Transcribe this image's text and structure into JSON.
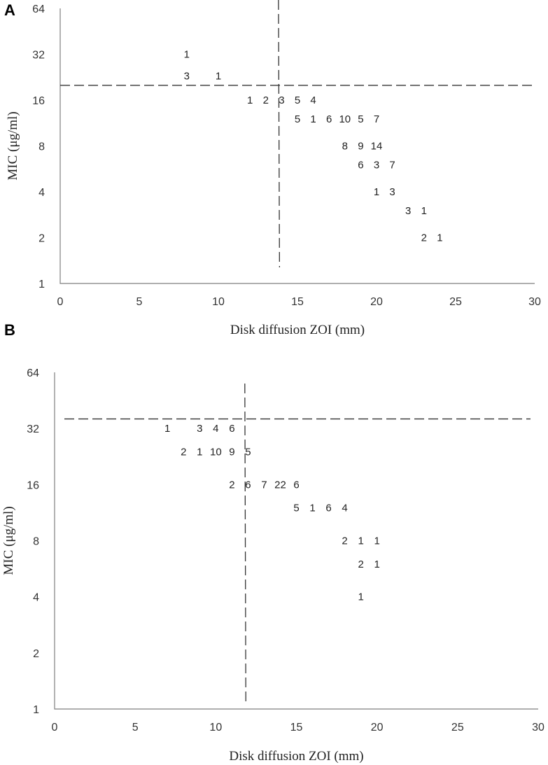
{
  "chart_data": [
    {
      "type": "scatter",
      "panel": "A",
      "xlabel": "Disk diffusion ZOI (mm)",
      "ylabel": "MIC (μg/ml)",
      "xlim": [
        0,
        30
      ],
      "xticks": [
        "0",
        "5",
        "10",
        "15",
        "20",
        "25",
        "30"
      ],
      "y_scale": "log2",
      "ylim": [
        1,
        64
      ],
      "yticks": [
        "1",
        "2",
        "4",
        "8",
        "16",
        "32",
        "64"
      ],
      "grid": false,
      "breakpoints": {
        "zoi_mm": 13.8,
        "mic_ug_ml": 20
      },
      "points": [
        {
          "x": 8,
          "y": 32,
          "label": "1"
        },
        {
          "x": 8,
          "y": 23,
          "label": "3"
        },
        {
          "x": 10,
          "y": 23,
          "label": "1"
        },
        {
          "x": 12,
          "y": 16,
          "label": "1"
        },
        {
          "x": 13,
          "y": 16,
          "label": "2"
        },
        {
          "x": 14,
          "y": 16,
          "label": "3"
        },
        {
          "x": 15,
          "y": 16,
          "label": "5"
        },
        {
          "x": 16,
          "y": 16,
          "label": "4"
        },
        {
          "x": 15,
          "y": 12,
          "label": "5"
        },
        {
          "x": 16,
          "y": 12,
          "label": "1"
        },
        {
          "x": 17,
          "y": 12,
          "label": "6"
        },
        {
          "x": 18,
          "y": 12,
          "label": "10"
        },
        {
          "x": 19,
          "y": 12,
          "label": "5"
        },
        {
          "x": 20,
          "y": 12,
          "label": "7"
        },
        {
          "x": 18,
          "y": 8,
          "label": "8"
        },
        {
          "x": 19,
          "y": 8,
          "label": "9"
        },
        {
          "x": 20,
          "y": 8,
          "label": "14"
        },
        {
          "x": 19,
          "y": 6,
          "label": "6"
        },
        {
          "x": 20,
          "y": 6,
          "label": "3"
        },
        {
          "x": 21,
          "y": 6,
          "label": "7"
        },
        {
          "x": 20,
          "y": 4,
          "label": "1"
        },
        {
          "x": 21,
          "y": 4,
          "label": "3"
        },
        {
          "x": 22,
          "y": 3,
          "label": "3"
        },
        {
          "x": 23,
          "y": 3,
          "label": "1"
        },
        {
          "x": 23,
          "y": 2,
          "label": "2"
        },
        {
          "x": 24,
          "y": 2,
          "label": "1"
        }
      ]
    },
    {
      "type": "scatter",
      "panel": "B",
      "xlabel": "Disk diffusion ZOI (mm)",
      "ylabel": "MIC (μg/ml)",
      "xlim": [
        0,
        30
      ],
      "xticks": [
        "0",
        "5",
        "10",
        "15",
        "20",
        "25",
        "30"
      ],
      "y_scale": "log2",
      "ylim": [
        1,
        64
      ],
      "yticks": [
        "1",
        "2",
        "4",
        "8",
        "16",
        "32",
        "64"
      ],
      "grid": false,
      "breakpoints": {
        "zoi_mm": 11.8,
        "mic_ug_ml": 36
      },
      "points": [
        {
          "x": 7,
          "y": 32,
          "label": "1"
        },
        {
          "x": 9,
          "y": 32,
          "label": "3"
        },
        {
          "x": 10,
          "y": 32,
          "label": "4"
        },
        {
          "x": 11,
          "y": 32,
          "label": "6"
        },
        {
          "x": 8,
          "y": 24,
          "label": "2"
        },
        {
          "x": 9,
          "y": 24,
          "label": "1"
        },
        {
          "x": 10,
          "y": 24,
          "label": "10"
        },
        {
          "x": 11,
          "y": 24,
          "label": "9"
        },
        {
          "x": 12,
          "y": 24,
          "label": "5"
        },
        {
          "x": 11,
          "y": 16,
          "label": "2"
        },
        {
          "x": 12,
          "y": 16,
          "label": "6"
        },
        {
          "x": 13,
          "y": 16,
          "label": "7"
        },
        {
          "x": 14,
          "y": 16,
          "label": "22"
        },
        {
          "x": 15,
          "y": 16,
          "label": "6"
        },
        {
          "x": 15,
          "y": 12,
          "label": "5"
        },
        {
          "x": 16,
          "y": 12,
          "label": "1"
        },
        {
          "x": 17,
          "y": 12,
          "label": "6"
        },
        {
          "x": 18,
          "y": 12,
          "label": "4"
        },
        {
          "x": 18,
          "y": 8,
          "label": "2"
        },
        {
          "x": 19,
          "y": 8,
          "label": "1"
        },
        {
          "x": 20,
          "y": 8,
          "label": "1"
        },
        {
          "x": 19,
          "y": 6,
          "label": "2"
        },
        {
          "x": 20,
          "y": 6,
          "label": "1"
        },
        {
          "x": 19,
          "y": 4,
          "label": "1"
        }
      ]
    }
  ]
}
